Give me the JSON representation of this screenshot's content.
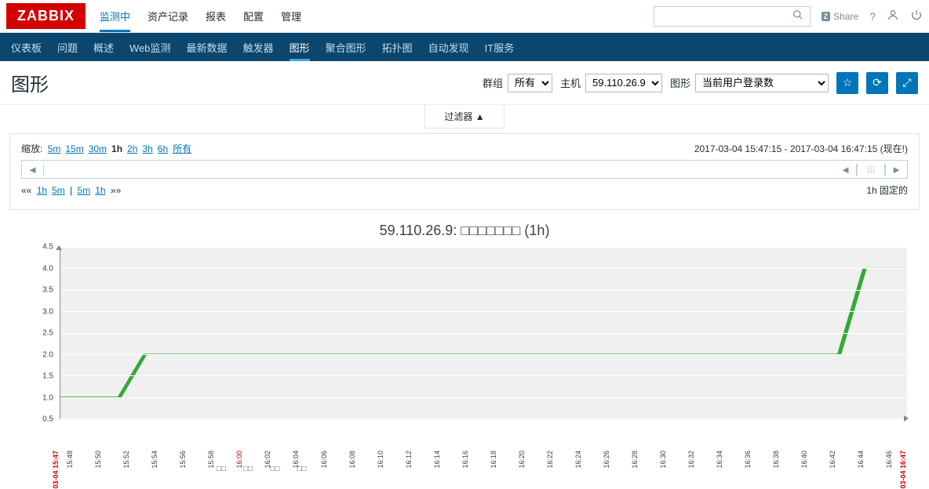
{
  "logo": "ZABBIX",
  "topnav": [
    "监测中",
    "资产记录",
    "报表",
    "配置",
    "管理"
  ],
  "topnav_active": 0,
  "share_label": "Share",
  "subnav": [
    "仪表板",
    "问题",
    "概述",
    "Web监测",
    "最新数据",
    "触发器",
    "图形",
    "聚合图形",
    "拓扑图",
    "自动发现",
    "IT服务"
  ],
  "subnav_active": 6,
  "page_title": "图形",
  "filters": {
    "group_label": "群组",
    "group_value": "所有",
    "host_label": "主机",
    "host_value": "59.110.26.9",
    "graph_label": "图形",
    "graph_value": "当前用户登录数"
  },
  "filter_toggle": "过滤器 ▲",
  "zoom_label": "缩放:",
  "zoom_opts": [
    "5m",
    "15m",
    "30m",
    "1h",
    "2h",
    "3h",
    "6h",
    "所有"
  ],
  "zoom_current": "1h",
  "timerange": "2017-03-04 15:47:15 - 2017-03-04 16:47:15 (现在!)",
  "nav_left": [
    "1h",
    "5m"
  ],
  "nav_right": [
    "5m",
    "1h"
  ],
  "fixed_label": "1h  固定的",
  "chart": {
    "title": "59.110.26.9: □□□□□□□ (1h)",
    "ylim": [
      0.5,
      4.5
    ],
    "yticks": [
      0.5,
      1.0,
      1.5,
      2.0,
      2.5,
      3.0,
      3.5,
      4.0,
      4.5
    ],
    "line_color": "#33aa33",
    "background_color": "#f0f0f0",
    "grid_color": "#ffffff",
    "edge_labels": {
      "start": "03-04 15:47",
      "end": "03-04 16:47"
    },
    "xticks": [
      "15:48",
      "15:50",
      "15:52",
      "15:54",
      "15:56",
      "15:58",
      "16:00",
      "16:02",
      "16:04",
      "16:06",
      "16:08",
      "16:10",
      "16:12",
      "16:14",
      "16:16",
      "16:18",
      "16:20",
      "16:22",
      "16:24",
      "16:26",
      "16:28",
      "16:30",
      "16:32",
      "16:34",
      "16:36",
      "16:38",
      "16:40",
      "16:42",
      "16:44",
      "16:46"
    ],
    "xtick_red": [
      "16:00"
    ],
    "data": [
      {
        "t": 0,
        "v": 1.0
      },
      {
        "t": 7,
        "v": 1.0
      },
      {
        "t": 10,
        "v": 2.0
      },
      {
        "t": 92,
        "v": 2.0
      },
      {
        "t": 95,
        "v": 4.0
      },
      {
        "t": 100,
        "v": 4.0
      }
    ]
  },
  "bottom_boxes": [
    "□□",
    "□□",
    "□□",
    "□□"
  ]
}
